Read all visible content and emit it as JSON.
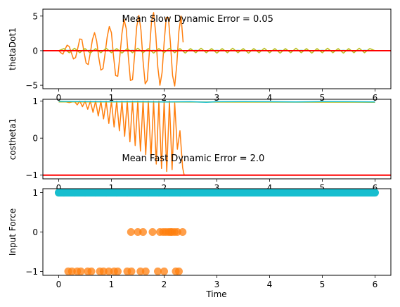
{
  "chart_data": [
    {
      "type": "line",
      "ylabel": "thetaDot1",
      "xlim": [
        -0.3,
        6.3
      ],
      "ylim": [
        -5.5,
        6.0
      ],
      "xticks": [
        0,
        1,
        2,
        3,
        4,
        5,
        6
      ],
      "yticks": [
        -5,
        0,
        5
      ],
      "xtick_labels": [
        "0",
        "1",
        "2",
        "3",
        "4",
        "5",
        "6"
      ],
      "ytick_labels": [
        "−5",
        "0",
        "5"
      ],
      "annotation": {
        "text": "Mean Slow Dynamic Error = 0.05",
        "x": 1.2,
        "y": 4.6
      },
      "reference_line": {
        "y": 0,
        "color": "#ff0000"
      },
      "series": [
        {
          "color": "#ff7f0e",
          "x": [
            0.0,
            0.04,
            0.08,
            0.12,
            0.16,
            0.2,
            0.24,
            0.28,
            0.32,
            0.36,
            0.4,
            0.44,
            0.48,
            0.52,
            0.56,
            0.6,
            0.64,
            0.68,
            0.72,
            0.76,
            0.8,
            0.84,
            0.88,
            0.92,
            0.96,
            1.0,
            1.04,
            1.08,
            1.12,
            1.16,
            1.2,
            1.24,
            1.28,
            1.32,
            1.36,
            1.4,
            1.44,
            1.48,
            1.52,
            1.56,
            1.6,
            1.64,
            1.68,
            1.72,
            1.76,
            1.8,
            1.84,
            1.88,
            1.92,
            1.96,
            2.0,
            2.04,
            2.08,
            2.12,
            2.16,
            2.2,
            2.24,
            2.28,
            2.32,
            2.36
          ],
          "y": [
            0.0,
            -0.3,
            -0.5,
            0.2,
            0.8,
            0.6,
            -0.3,
            -1.2,
            -1.0,
            0.3,
            1.7,
            1.6,
            -0.2,
            -1.8,
            -2.0,
            -0.3,
            1.6,
            2.6,
            1.4,
            -1.0,
            -2.8,
            -2.6,
            -0.4,
            2.0,
            3.5,
            2.6,
            -0.8,
            -3.6,
            -3.7,
            -0.8,
            2.5,
            4.5,
            3.2,
            -0.8,
            -4.3,
            -4.2,
            -0.6,
            3.5,
            5.1,
            3.0,
            -1.5,
            -4.8,
            -4.3,
            -0.2,
            4.2,
            5.5,
            2.5,
            -2.4,
            -5.0,
            -3.2,
            1.2,
            4.8,
            4.8,
            1.0,
            -3.6,
            -5.1,
            -2.0,
            2.8,
            5.0,
            1.2
          ]
        },
        {
          "color": "#bcbd22",
          "x": [
            0.0,
            0.1,
            0.2,
            0.3,
            0.4,
            0.5,
            0.6,
            0.7,
            0.8,
            0.9,
            1.0,
            1.1,
            1.2,
            1.3,
            1.4,
            1.5,
            1.6,
            1.7,
            1.8,
            1.9,
            2.0,
            2.1,
            2.2,
            2.3,
            2.4,
            2.5,
            2.6,
            2.7,
            2.8,
            2.9,
            3.0,
            3.1,
            3.2,
            3.3,
            3.4,
            3.5,
            3.6,
            3.7,
            3.8,
            3.9,
            4.0,
            4.1,
            4.2,
            4.3,
            4.4,
            4.5,
            4.6,
            4.7,
            4.8,
            4.9,
            5.0,
            5.1,
            5.2,
            5.3,
            5.4,
            5.5,
            5.6,
            5.7,
            5.8,
            5.9,
            6.0
          ],
          "y": [
            0.0,
            0.3,
            -0.3,
            0.35,
            -0.3,
            0.3,
            -0.35,
            0.3,
            -0.3,
            0.35,
            -0.3,
            0.3,
            -0.35,
            0.3,
            -0.3,
            0.35,
            -0.3,
            0.3,
            -0.35,
            0.3,
            -0.3,
            0.35,
            -0.3,
            0.3,
            -0.35,
            0.3,
            -0.3,
            0.35,
            -0.3,
            0.3,
            -0.35,
            0.3,
            -0.3,
            0.35,
            -0.3,
            0.3,
            -0.35,
            0.3,
            -0.3,
            0.35,
            -0.3,
            0.3,
            -0.35,
            0.3,
            -0.3,
            0.35,
            -0.3,
            0.3,
            -0.35,
            0.3,
            -0.3,
            0.35,
            -0.3,
            0.3,
            -0.35,
            0.3,
            -0.3,
            0.35,
            -0.3,
            0.3,
            0.0
          ]
        },
        {
          "color": "#17becf",
          "x": [
            0.0,
            0.2,
            0.4,
            0.6,
            0.8,
            1.0,
            1.2,
            1.4,
            1.6,
            1.8,
            2.0,
            2.2,
            2.4,
            2.6,
            2.8,
            3.0,
            3.2,
            3.4,
            3.6,
            3.8,
            4.0,
            4.2,
            4.4,
            4.6,
            4.8,
            5.0,
            5.2,
            5.4,
            5.6,
            5.8,
            6.0
          ],
          "y": [
            0.0,
            0.05,
            -0.05,
            0.05,
            -0.05,
            0.05,
            -0.05,
            0.05,
            -0.05,
            0.05,
            -0.05,
            0.05,
            -0.05,
            0.05,
            -0.05,
            0.05,
            -0.05,
            0.05,
            -0.05,
            0.05,
            -0.05,
            0.05,
            -0.05,
            0.05,
            -0.05,
            0.05,
            -0.05,
            0.05,
            -0.05,
            0.05,
            0.0
          ]
        }
      ]
    },
    {
      "type": "line",
      "ylabel": "costheta1",
      "xlim": [
        -0.3,
        6.3
      ],
      "ylim": [
        -1.1,
        1.05
      ],
      "xticks": [
        0,
        1,
        2,
        3,
        4,
        5,
        6
      ],
      "yticks": [
        -1,
        0,
        1
      ],
      "xtick_labels": [
        "0",
        "1",
        "2",
        "3",
        "4",
        "5",
        "6"
      ],
      "ytick_labels": [
        "−1",
        "0",
        "1"
      ],
      "annotation": {
        "text": "Mean Fast Dynamic Error = 2.0",
        "x": 1.2,
        "y": -0.55
      },
      "reference_line": {
        "y": -1,
        "color": "#ff0000"
      },
      "series": [
        {
          "color": "#ff7f0e",
          "x": [
            0.0,
            0.1,
            0.2,
            0.3,
            0.35,
            0.4,
            0.45,
            0.5,
            0.55,
            0.6,
            0.65,
            0.7,
            0.75,
            0.8,
            0.85,
            0.9,
            0.95,
            1.0,
            1.05,
            1.1,
            1.15,
            1.2,
            1.25,
            1.3,
            1.35,
            1.4,
            1.45,
            1.5,
            1.55,
            1.6,
            1.65,
            1.7,
            1.75,
            1.8,
            1.85,
            1.9,
            1.95,
            2.0,
            2.05,
            2.1,
            2.15,
            2.2,
            2.25,
            2.3,
            2.35,
            2.38
          ],
          "y": [
            1.0,
            0.99,
            0.96,
            0.99,
            0.9,
            1.0,
            0.85,
            1.0,
            0.78,
            1.0,
            0.7,
            1.0,
            0.6,
            1.0,
            0.52,
            1.0,
            0.4,
            1.0,
            0.3,
            1.0,
            0.2,
            1.0,
            0.05,
            1.0,
            -0.1,
            1.0,
            -0.2,
            1.0,
            -0.35,
            1.0,
            -0.45,
            1.0,
            -0.55,
            1.0,
            -0.7,
            1.0,
            -0.82,
            1.0,
            -0.9,
            1.0,
            -0.85,
            0.95,
            -0.3,
            0.2,
            -0.8,
            -1.0
          ]
        },
        {
          "color": "#bcbd22",
          "x": [
            0.0,
            6.0
          ],
          "y": [
            0.98,
            0.97
          ]
        },
        {
          "color": "#17becf",
          "x": [
            0.0,
            0.5,
            1.0,
            1.5,
            2.0,
            2.5,
            2.8,
            3.0,
            3.5,
            4.0,
            4.5,
            5.0,
            5.5,
            6.0
          ],
          "y": [
            0.995,
            0.99,
            0.985,
            0.99,
            0.98,
            0.985,
            0.97,
            0.985,
            0.99,
            0.985,
            0.98,
            0.99,
            0.985,
            0.98
          ]
        }
      ]
    },
    {
      "type": "scatter",
      "xlabel": "Time",
      "ylabel": "Input Force",
      "xlim": [
        -0.3,
        6.3
      ],
      "ylim": [
        -1.1,
        1.1
      ],
      "xticks": [
        0,
        1,
        2,
        3,
        4,
        5,
        6
      ],
      "yticks": [
        -1,
        0,
        1
      ],
      "xtick_labels": [
        "0",
        "1",
        "2",
        "3",
        "4",
        "5",
        "6"
      ],
      "ytick_labels": [
        "−1",
        "0",
        "1"
      ],
      "series": [
        {
          "color": "#ff7f0e",
          "points": [
            [
              0.0,
              1
            ],
            [
              0.1,
              1
            ],
            [
              0.3,
              1
            ],
            [
              0.5,
              1
            ],
            [
              0.7,
              1
            ],
            [
              0.9,
              1
            ],
            [
              1.1,
              1
            ],
            [
              1.3,
              1
            ],
            [
              1.5,
              1
            ],
            [
              1.7,
              1
            ],
            [
              1.9,
              1
            ],
            [
              2.1,
              1
            ],
            [
              2.3,
              1
            ],
            [
              1.37,
              0
            ],
            [
              1.5,
              0
            ],
            [
              1.6,
              0
            ],
            [
              1.78,
              0
            ],
            [
              1.92,
              0
            ],
            [
              1.98,
              0
            ],
            [
              2.03,
              0
            ],
            [
              2.08,
              0
            ],
            [
              2.12,
              0
            ],
            [
              2.15,
              0
            ],
            [
              2.2,
              0
            ],
            [
              2.25,
              0
            ],
            [
              2.35,
              0
            ],
            [
              0.18,
              -1
            ],
            [
              0.25,
              -1
            ],
            [
              0.35,
              -1
            ],
            [
              0.42,
              -1
            ],
            [
              0.55,
              -1
            ],
            [
              0.62,
              -1
            ],
            [
              0.78,
              -1
            ],
            [
              0.85,
              -1
            ],
            [
              0.95,
              -1
            ],
            [
              1.05,
              -1
            ],
            [
              1.12,
              -1
            ],
            [
              1.3,
              -1
            ],
            [
              1.38,
              -1
            ],
            [
              1.55,
              -1
            ],
            [
              1.65,
              -1
            ],
            [
              1.88,
              -1
            ],
            [
              2.0,
              -1
            ],
            [
              2.22,
              -1
            ],
            [
              2.28,
              -1
            ]
          ]
        },
        {
          "color": "#17becf",
          "line_from": [
            0.0,
            1
          ],
          "line_to": [
            6.0,
            1
          ]
        }
      ]
    }
  ]
}
